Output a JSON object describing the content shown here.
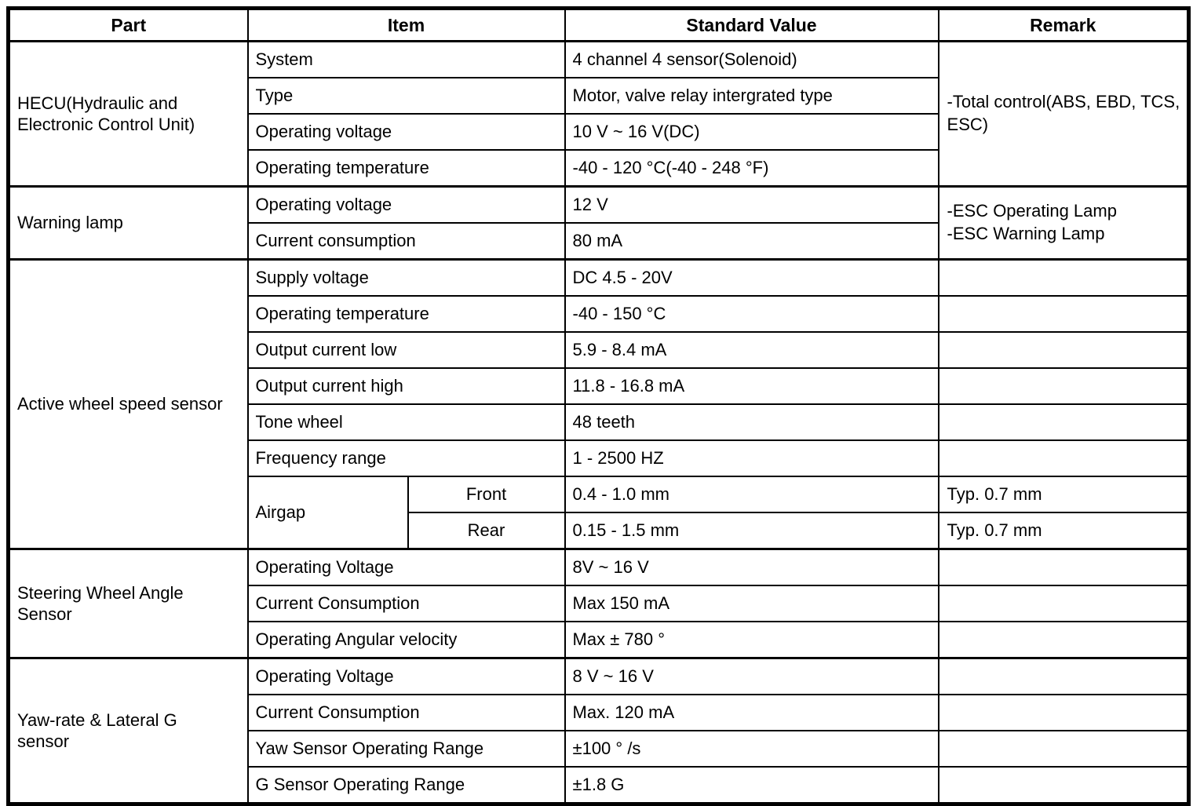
{
  "table": {
    "headers": {
      "part": "Part",
      "item": "Item",
      "standard_value": "Standard Value",
      "remark": "Remark"
    },
    "sections": [
      {
        "part": "HECU(Hydraulic and Electronic Control Unit)",
        "remark": "-Total control(ABS, EBD, TCS, ESC)",
        "rows": [
          {
            "item": "System",
            "value": "4 channel 4 sensor(Solenoid)"
          },
          {
            "item": "Type",
            "value": "Motor, valve relay intergrated type"
          },
          {
            "item": "Operating voltage",
            "value": "10 V ~ 16 V(DC)"
          },
          {
            "item": "Operating temperature",
            "value": "-40 - 120 °C(-40 - 248 °F)"
          }
        ]
      },
      {
        "part": "Warning lamp",
        "remark_lines": [
          "-ESC Operating Lamp",
          "-ESC Warning Lamp"
        ],
        "rows": [
          {
            "item": "Operating voltage",
            "value": "12 V"
          },
          {
            "item": "Current consumption",
            "value": "80 mA"
          }
        ]
      },
      {
        "part": "Active wheel speed sensor",
        "rows": [
          {
            "item": "Supply voltage",
            "value": "DC 4.5 - 20V"
          },
          {
            "item": "Operating temperature",
            "value": "-40 - 150 °C"
          },
          {
            "item": "Output current low",
            "value": "5.9 - 8.4 mA"
          },
          {
            "item": "Output current high",
            "value": "11.8 - 16.8 mA"
          },
          {
            "item": "Tone wheel",
            "value": "48 teeth"
          },
          {
            "item": "Frequency range",
            "value": "1 - 2500 HZ"
          },
          {
            "group": "Airgap",
            "sub": "Front",
            "value": "0.4 - 1.0 mm",
            "remark": "Typ. 0.7 mm"
          },
          {
            "sub": "Rear",
            "value": "0.15 - 1.5 mm",
            "remark": "Typ. 0.7 mm"
          }
        ]
      },
      {
        "part": "Steering Wheel Angle Sensor",
        "rows": [
          {
            "item": "Operating Voltage",
            "value": "8V ~ 16 V"
          },
          {
            "item": "Current Consumption",
            "value": "Max 150 mA"
          },
          {
            "item": "Operating Angular velocity",
            "value": "Max ± 780 °"
          }
        ]
      },
      {
        "part": "Yaw-rate & Lateral G sensor",
        "rows": [
          {
            "item": "Operating Voltage",
            "value": "8 V ~ 16 V"
          },
          {
            "item": "Current Consumption",
            "value": "Max. 120 mA"
          },
          {
            "item": "Yaw Sensor Operating Range",
            "value": "±100 ° /s"
          },
          {
            "item": "G Sensor Operating Range",
            "value": "±1.8 G"
          }
        ]
      }
    ]
  }
}
